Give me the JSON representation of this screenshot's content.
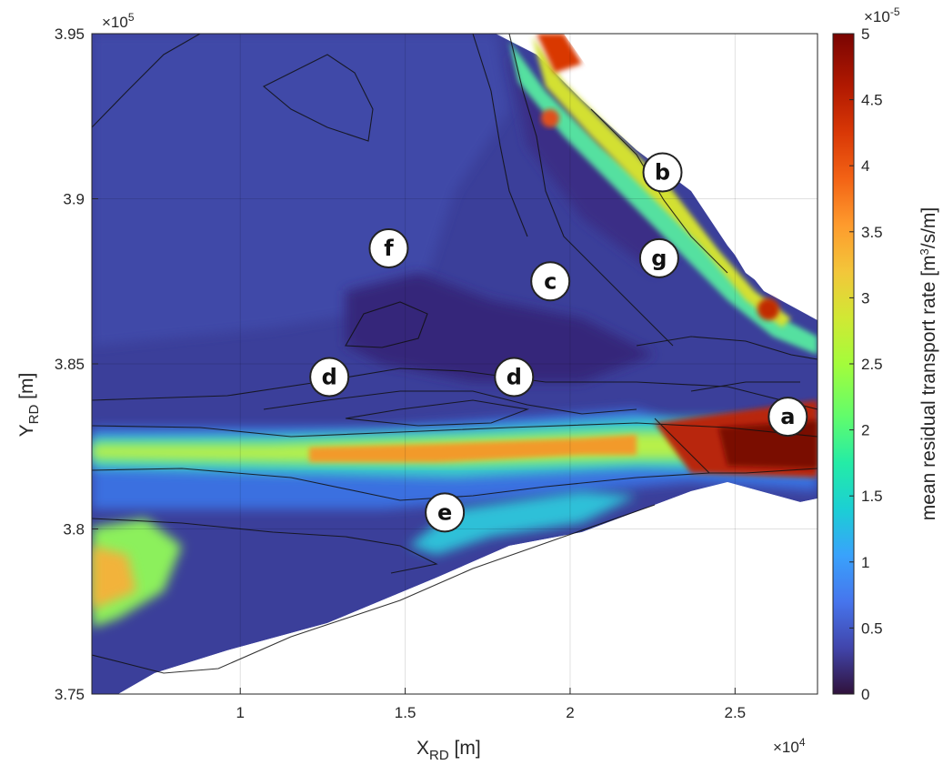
{
  "chart_data": {
    "type": "heatmap",
    "title": "",
    "xlabel": "X",
    "xlabel_sub": "RD",
    "xlabel_unit": " [m]",
    "ylabel": "Y",
    "ylabel_sub": "RD",
    "ylabel_unit": " [m]",
    "x_multiplier": "×10",
    "x_multiplier_exp": "4",
    "y_multiplier": "×10",
    "y_multiplier_exp": "5",
    "xlim": [
      5500,
      27500
    ],
    "ylim": [
      375000,
      395000
    ],
    "xticks": [
      10000,
      15000,
      20000,
      25000
    ],
    "xtick_labels": [
      "1",
      "1.5",
      "2",
      "2.5"
    ],
    "yticks": [
      375000,
      380000,
      385000,
      390000,
      395000
    ],
    "ytick_labels": [
      "3.75",
      "3.8",
      "3.85",
      "3.9",
      "3.95"
    ],
    "grid": true,
    "colorbar": {
      "label_before": "mean residual transport rate [m",
      "label_sup": "3",
      "label_after": "/s/m]",
      "range": [
        0,
        5e-05
      ],
      "multiplier": "×10",
      "multiplier_exp": "-5",
      "ticks": [
        0,
        5e-06,
        1e-05,
        1.5e-05,
        2e-05,
        2.5e-05,
        3e-05,
        3.5e-05,
        4e-05,
        4.5e-05,
        5e-05
      ],
      "tick_labels": [
        "0",
        "0.5",
        "1",
        "1.5",
        "2",
        "2.5",
        "3",
        "3.5",
        "4",
        "4.5",
        "5"
      ],
      "colormap": "turbo"
    },
    "markers": [
      {
        "label": "a",
        "x": 26600,
        "y": 383400
      },
      {
        "label": "b",
        "x": 22800,
        "y": 390800
      },
      {
        "label": "c",
        "x": 19400,
        "y": 387500
      },
      {
        "label": "d",
        "x": 12700,
        "y": 384600
      },
      {
        "label": "d",
        "x": 18300,
        "y": 384600
      },
      {
        "label": "e",
        "x": 16200,
        "y": 380500
      },
      {
        "label": "f",
        "x": 14500,
        "y": 388500
      },
      {
        "label": "g",
        "x": 22700,
        "y": 388200
      }
    ]
  }
}
